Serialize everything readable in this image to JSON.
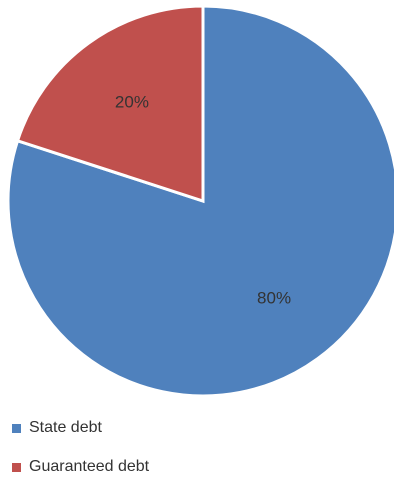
{
  "chart_data": {
    "type": "pie",
    "title": "",
    "legend_position": "bottom-left",
    "start_angle_deg": 0,
    "direction": "clockwise",
    "slices": [
      {
        "name": "State debt",
        "value": 80,
        "label": "80%",
        "color": "#4f81bd"
      },
      {
        "name": "Guaranteed debt",
        "value": 20,
        "label": "20%",
        "color": "#c0504d"
      }
    ]
  }
}
